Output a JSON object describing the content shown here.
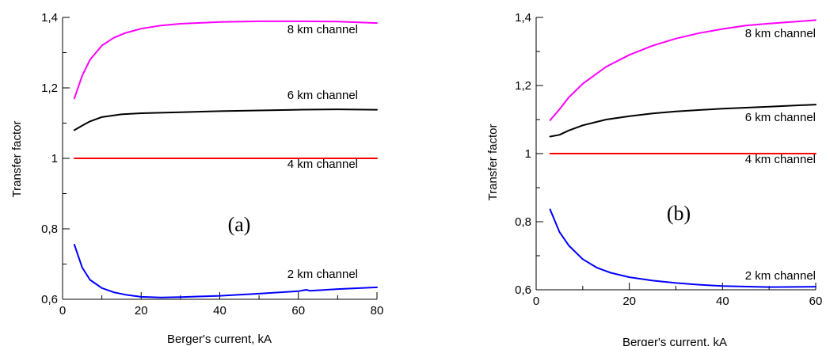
{
  "chart_data": [
    {
      "type": "line",
      "panel_label": "(a)",
      "xlabel": "Berger's current, kA",
      "ylabel": "Transfer factor",
      "xlim": [
        0,
        80
      ],
      "ylim": [
        0.6,
        1.4
      ],
      "xticks": [
        {
          "value": 0,
          "label": "0"
        },
        {
          "value": 20,
          "label": "20"
        },
        {
          "value": 40,
          "label": "40"
        },
        {
          "value": 60,
          "label": "60"
        },
        {
          "value": 80,
          "label": "80"
        }
      ],
      "yticks": [
        {
          "value": 0.6,
          "label": "0,6"
        },
        {
          "value": 0.8,
          "label": "0,8"
        },
        {
          "value": 1.0,
          "label": "1"
        },
        {
          "value": 1.2,
          "label": "1,2"
        },
        {
          "value": 1.4,
          "label": "1,4"
        }
      ],
      "series": [
        {
          "name": "8 km channel",
          "color": "#ff00ff",
          "x": [
            3,
            5,
            7,
            10,
            13,
            16,
            20,
            25,
            30,
            40,
            50,
            60,
            70,
            80
          ],
          "y": [
            1.17,
            1.235,
            1.28,
            1.32,
            1.342,
            1.356,
            1.368,
            1.377,
            1.382,
            1.387,
            1.389,
            1.389,
            1.388,
            1.384
          ]
        },
        {
          "name": "6 km channel",
          "color": "#000000",
          "x": [
            3,
            5,
            7,
            10,
            15,
            20,
            30,
            40,
            50,
            60,
            70,
            80
          ],
          "y": [
            1.08,
            1.093,
            1.105,
            1.117,
            1.125,
            1.128,
            1.131,
            1.134,
            1.136,
            1.138,
            1.139,
            1.138
          ]
        },
        {
          "name": "4 km channel",
          "color": "#ff0000",
          "x": [
            3,
            80
          ],
          "y": [
            1.0,
            1.0
          ]
        },
        {
          "name": "2 km channel",
          "color": "#0000ff",
          "x": [
            3,
            5,
            7,
            10,
            13,
            16,
            20,
            25,
            30,
            35,
            40,
            50,
            60,
            62,
            63,
            70,
            80
          ],
          "y": [
            0.755,
            0.69,
            0.655,
            0.632,
            0.62,
            0.613,
            0.607,
            0.605,
            0.606,
            0.608,
            0.61,
            0.616,
            0.623,
            0.627,
            0.624,
            0.629,
            0.634
          ]
        }
      ]
    },
    {
      "type": "line",
      "panel_label": "(b)",
      "xlabel": "Berger's current, kA",
      "ylabel": "Transfer factor",
      "xlim": [
        0,
        60
      ],
      "ylim": [
        0.6,
        1.4
      ],
      "xticks": [
        {
          "value": 0,
          "label": "0"
        },
        {
          "value": 20,
          "label": "20"
        },
        {
          "value": 40,
          "label": "40"
        },
        {
          "value": 60,
          "label": "60"
        }
      ],
      "yticks": [
        {
          "value": 0.6,
          "label": "0,6"
        },
        {
          "value": 0.8,
          "label": "0,8"
        },
        {
          "value": 1.0,
          "label": "1"
        },
        {
          "value": 1.2,
          "label": "1,2"
        },
        {
          "value": 1.4,
          "label": "1,4"
        }
      ],
      "series": [
        {
          "name": "8 km channel",
          "color": "#ff00ff",
          "x": [
            3,
            5,
            7,
            10,
            15,
            20,
            25,
            30,
            35,
            40,
            45,
            50,
            55,
            60
          ],
          "y": [
            1.098,
            1.13,
            1.165,
            1.205,
            1.255,
            1.29,
            1.317,
            1.338,
            1.354,
            1.366,
            1.376,
            1.382,
            1.387,
            1.392
          ]
        },
        {
          "name": "6 km channel",
          "color": "#000000",
          "x": [
            3,
            5,
            7,
            10,
            15,
            20,
            25,
            30,
            40,
            50,
            60
          ],
          "y": [
            1.05,
            1.055,
            1.068,
            1.083,
            1.1,
            1.11,
            1.118,
            1.124,
            1.132,
            1.138,
            1.144
          ]
        },
        {
          "name": "4 km channel",
          "color": "#ff0000",
          "x": [
            3,
            60
          ],
          "y": [
            1.0,
            1.0
          ]
        },
        {
          "name": "2 km channel",
          "color": "#0000ff",
          "x": [
            3,
            5,
            7,
            10,
            13,
            16,
            20,
            25,
            30,
            35,
            40,
            50,
            60
          ],
          "y": [
            0.836,
            0.77,
            0.73,
            0.69,
            0.665,
            0.65,
            0.637,
            0.627,
            0.62,
            0.615,
            0.611,
            0.608,
            0.609
          ]
        }
      ]
    }
  ]
}
